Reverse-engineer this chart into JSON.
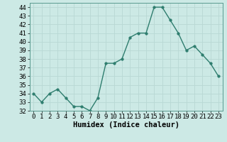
{
  "x": [
    0,
    1,
    2,
    3,
    4,
    5,
    6,
    7,
    8,
    9,
    10,
    11,
    12,
    13,
    14,
    15,
    16,
    17,
    18,
    19,
    20,
    21,
    22,
    23
  ],
  "y": [
    34,
    33,
    34,
    34.5,
    33.5,
    32.5,
    32.5,
    32,
    33.5,
    37.5,
    37.5,
    38,
    40.5,
    41,
    41,
    44,
    44,
    42.5,
    41,
    39,
    39.5,
    38.5,
    37.5,
    36
  ],
  "line_color": "#2e7d6e",
  "marker_color": "#2e7d6e",
  "bg_color": "#cce9e5",
  "grid_color": "#b8d8d4",
  "xlabel": "Humidex (Indice chaleur)",
  "xlim": [
    -0.5,
    23.5
  ],
  "ylim": [
    32,
    44.5
  ],
  "yticks": [
    32,
    33,
    34,
    35,
    36,
    37,
    38,
    39,
    40,
    41,
    42,
    43,
    44
  ],
  "xticks": [
    0,
    1,
    2,
    3,
    4,
    5,
    6,
    7,
    8,
    9,
    10,
    11,
    12,
    13,
    14,
    15,
    16,
    17,
    18,
    19,
    20,
    21,
    22,
    23
  ],
  "xlabel_fontsize": 7.5,
  "tick_fontsize": 6.5,
  "line_width": 1.0,
  "marker_size": 2.5
}
